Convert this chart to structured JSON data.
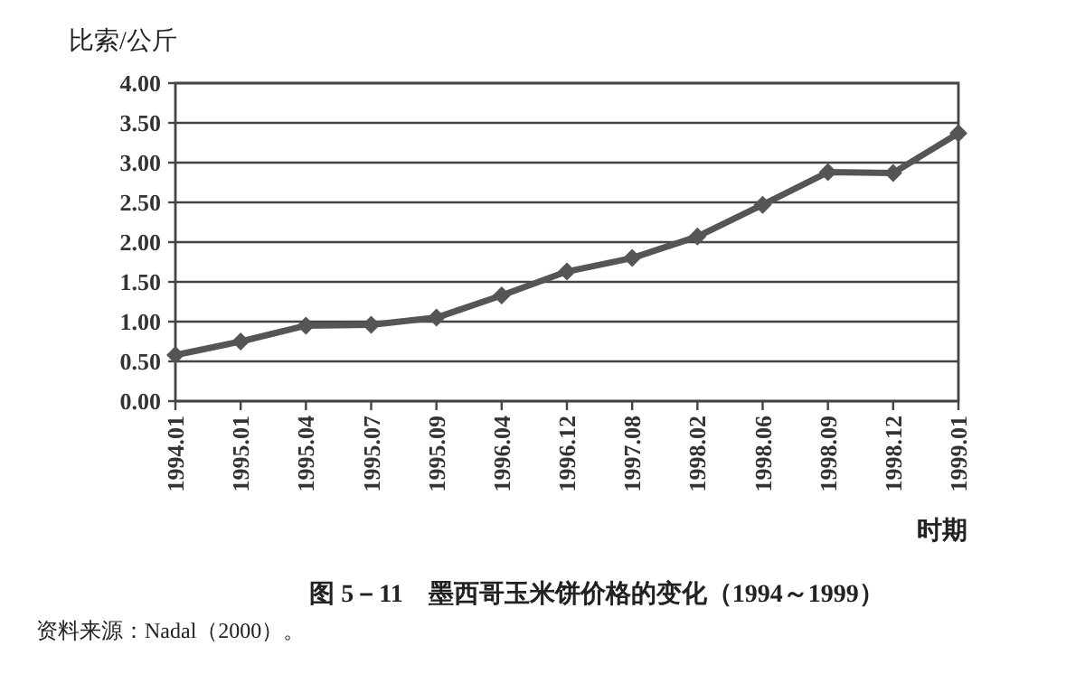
{
  "chart_data": {
    "type": "line",
    "title": "图 5－11　墨西哥玉米饼价格的变化（1994～1999）",
    "ylabel": "比索/公斤",
    "xlabel": "时期",
    "categories": [
      "1994.01",
      "1995.01",
      "1995.04",
      "1995.07",
      "1995.09",
      "1996.04",
      "1996.12",
      "1997.08",
      "1998.02",
      "1998.06",
      "1998.09",
      "1998.12",
      "1999.01"
    ],
    "series": [
      {
        "color": "#555555",
        "values": [
          0.58,
          0.75,
          0.95,
          0.96,
          1.05,
          1.33,
          1.63,
          1.8,
          2.07,
          2.47,
          2.88,
          2.87,
          3.37
        ]
      }
    ],
    "ylim": [
      0,
      4
    ],
    "yticks": [
      {
        "value": 0,
        "label": "0.00"
      },
      {
        "value": 0.5,
        "label": "0.50"
      },
      {
        "value": 1,
        "label": "1.00"
      },
      {
        "value": 1.5,
        "label": "1.50"
      },
      {
        "value": 2,
        "label": "2.00"
      },
      {
        "value": 2.5,
        "label": "2.50"
      },
      {
        "value": 3,
        "label": "3.00"
      },
      {
        "value": 3.5,
        "label": "3.50"
      },
      {
        "value": 4,
        "label": "4.00"
      }
    ],
    "grid": "y",
    "marker": "diamond",
    "line_style": "solid",
    "annotations": [
      "资料来源：Nadal（2000）。"
    ]
  }
}
